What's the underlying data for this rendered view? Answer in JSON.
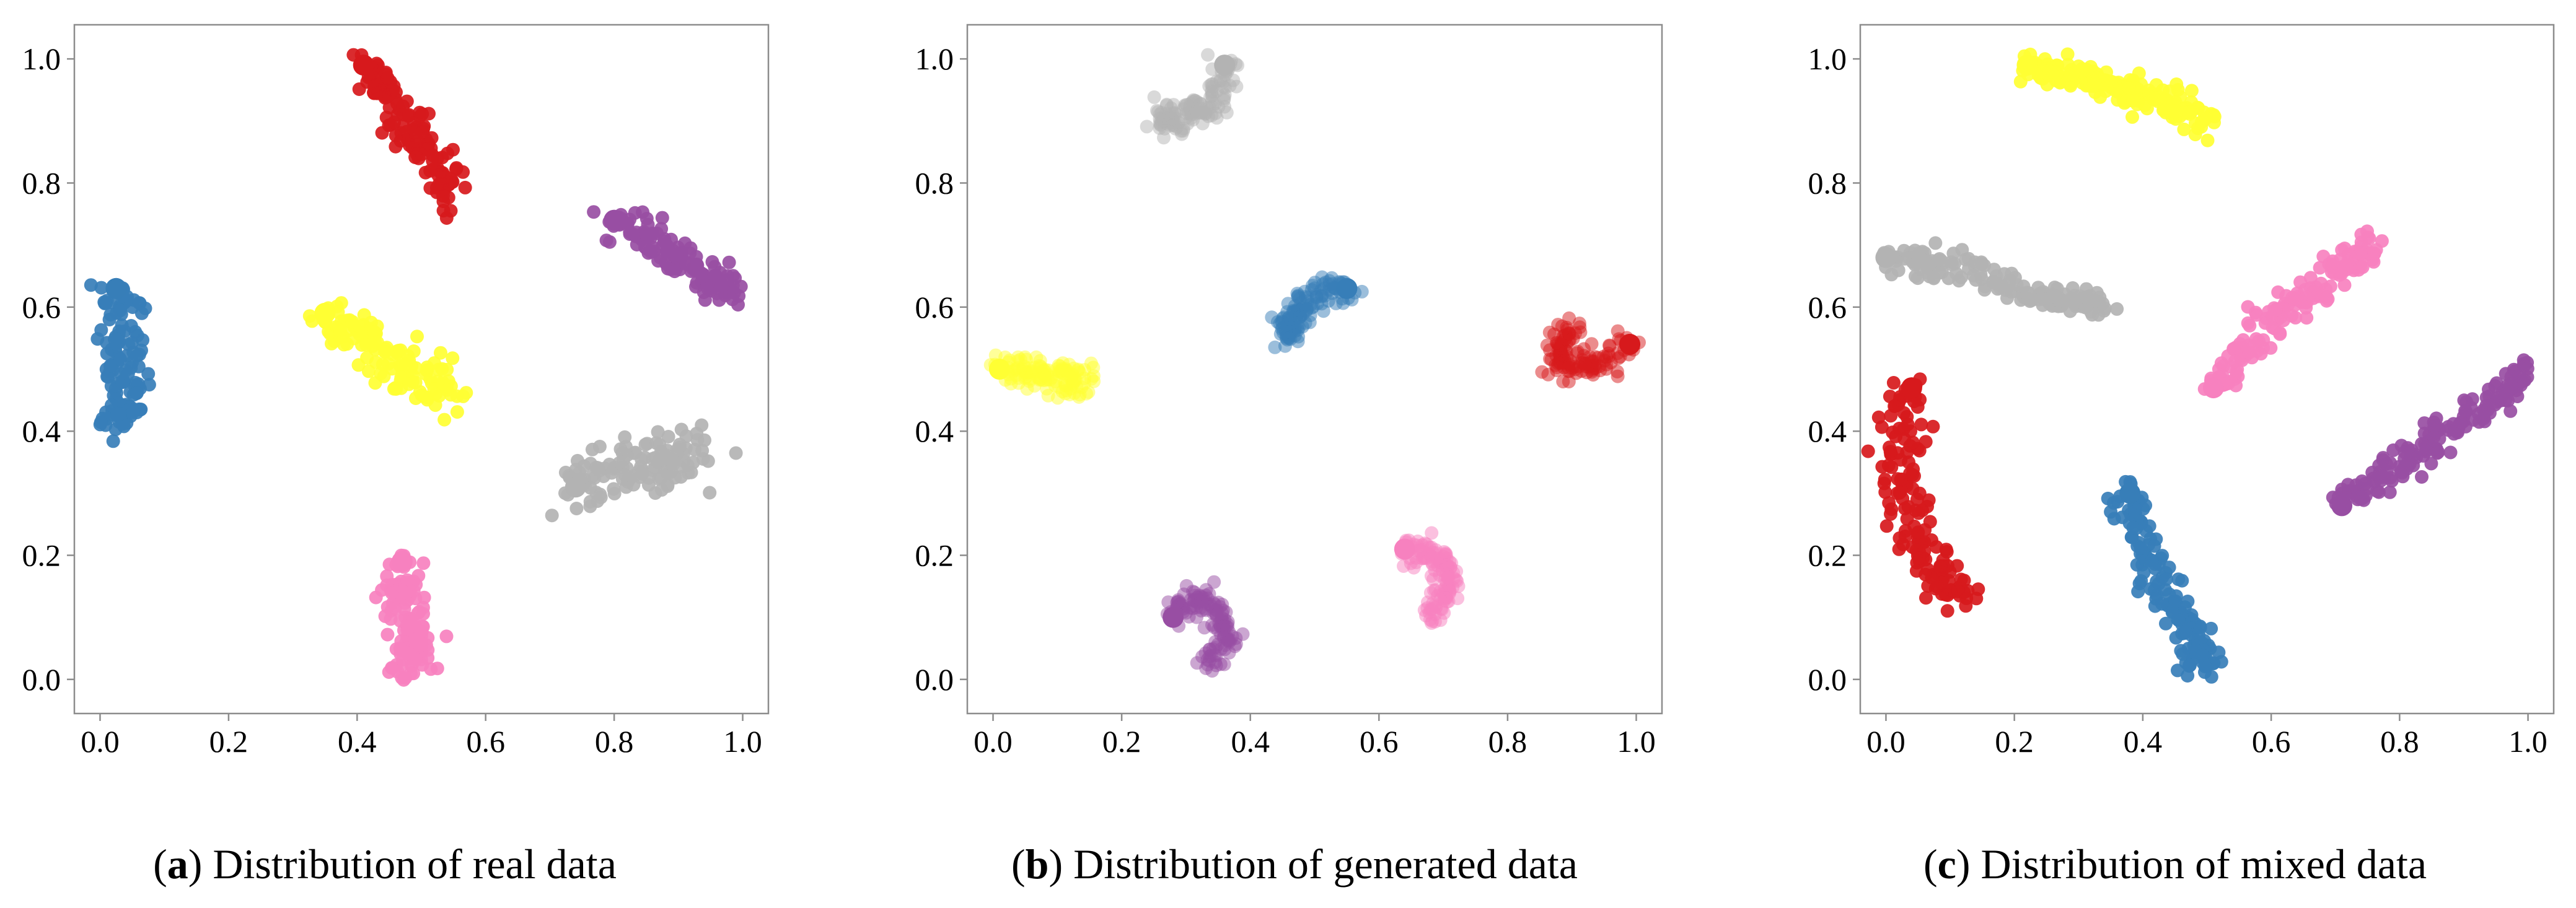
{
  "figure": {
    "captions": [
      {
        "open": "(",
        "letter": "a",
        "close": ")",
        "text": " Distribution of real data"
      },
      {
        "open": "(",
        "letter": "b",
        "close": ")",
        "text": " Distribution of generated data"
      },
      {
        "open": "(",
        "letter": "c",
        "close": ")",
        "text": " Distribution of mixed data"
      }
    ]
  },
  "chart_data": [
    {
      "type": "scatter",
      "title": "Distribution of real data",
      "xlabel": "",
      "ylabel": "",
      "xlim": [
        -0.04,
        1.04
      ],
      "ylim": [
        -0.055,
        1.055
      ],
      "xticks": [
        "0.0",
        "0.2",
        "0.4",
        "0.6",
        "0.8",
        "1.0"
      ],
      "yticks": [
        "0.0",
        "0.2",
        "0.4",
        "0.6",
        "0.8",
        "1.0"
      ],
      "grid": false,
      "clusters": [
        {
          "color": "#d7191c",
          "x": [
            0.41,
            0.44,
            0.47,
            0.5,
            0.53,
            0.55
          ],
          "y": [
            0.99,
            0.95,
            0.9,
            0.86,
            0.81,
            0.78
          ],
          "spread": [
            0.012,
            0.022
          ]
        },
        {
          "color": "#377eb8",
          "x": [
            0.025,
            0.03,
            0.035,
            0.04,
            0.035,
            0.03
          ],
          "y": [
            0.63,
            0.58,
            0.52,
            0.47,
            0.43,
            0.41
          ],
          "spread": [
            0.018,
            0.012
          ]
        },
        {
          "color": "#984ea3",
          "x": [
            0.8,
            0.84,
            0.88,
            0.92,
            0.96,
            0.99
          ],
          "y": [
            0.74,
            0.72,
            0.69,
            0.67,
            0.64,
            0.62
          ],
          "spread": [
            0.015,
            0.015
          ]
        },
        {
          "color": "#ffff33",
          "x": [
            0.35,
            0.39,
            0.43,
            0.47,
            0.51,
            0.55
          ],
          "y": [
            0.59,
            0.56,
            0.53,
            0.5,
            0.48,
            0.46
          ],
          "spread": [
            0.015,
            0.018
          ]
        },
        {
          "color": "#b3b3b3",
          "x": [
            0.74,
            0.78,
            0.82,
            0.86,
            0.9,
            0.94
          ],
          "y": [
            0.31,
            0.33,
            0.34,
            0.35,
            0.36,
            0.37
          ],
          "spread": [
            0.02,
            0.022
          ]
        },
        {
          "color": "#f781bf",
          "x": [
            0.47,
            0.47,
            0.48,
            0.49,
            0.48,
            0.48
          ],
          "y": [
            0.19,
            0.15,
            0.11,
            0.07,
            0.04,
            0.01
          ],
          "spread": [
            0.018,
            0.012
          ]
        }
      ]
    },
    {
      "type": "scatter",
      "title": "Distribution of generated data",
      "xlabel": "",
      "ylabel": "",
      "xlim": [
        -0.04,
        1.04
      ],
      "ylim": [
        -0.055,
        1.055
      ],
      "xticks": [
        "0.0",
        "0.2",
        "0.4",
        "0.6",
        "0.8",
        "1.0"
      ],
      "yticks": [
        "0.0",
        "0.2",
        "0.4",
        "0.6",
        "0.8",
        "1.0"
      ],
      "grid": false,
      "clusters": [
        {
          "color": "#b3b3b3",
          "x": [
            0.36,
            0.35,
            0.33,
            0.3,
            0.27,
            0.26
          ],
          "y": [
            0.99,
            0.95,
            0.92,
            0.91,
            0.9,
            0.91
          ],
          "spread": [
            0.012,
            0.012
          ]
        },
        {
          "color": "#377eb8",
          "x": [
            0.55,
            0.52,
            0.49,
            0.47,
            0.46,
            0.46
          ],
          "y": [
            0.63,
            0.63,
            0.61,
            0.59,
            0.57,
            0.55
          ],
          "spread": [
            0.012,
            0.012
          ]
        },
        {
          "color": "#ffff33",
          "x": [
            0.01,
            0.04,
            0.07,
            0.1,
            0.12,
            0.15
          ],
          "y": [
            0.5,
            0.5,
            0.49,
            0.49,
            0.48,
            0.48
          ],
          "spread": [
            0.012,
            0.012
          ]
        },
        {
          "color": "#d7191c",
          "x": [
            0.99,
            0.95,
            0.91,
            0.88,
            0.88,
            0.9
          ],
          "y": [
            0.54,
            0.51,
            0.5,
            0.51,
            0.54,
            0.57
          ],
          "spread": [
            0.012,
            0.012
          ]
        },
        {
          "color": "#f781bf",
          "x": [
            0.64,
            0.67,
            0.7,
            0.71,
            0.7,
            0.67
          ],
          "y": [
            0.21,
            0.21,
            0.19,
            0.16,
            0.13,
            0.1
          ],
          "spread": [
            0.01,
            0.01
          ]
        },
        {
          "color": "#984ea3",
          "x": [
            0.28,
            0.31,
            0.34,
            0.36,
            0.36,
            0.33
          ],
          "y": [
            0.1,
            0.13,
            0.12,
            0.09,
            0.05,
            0.02
          ],
          "spread": [
            0.01,
            0.01
          ]
        }
      ]
    },
    {
      "type": "scatter",
      "title": "Distribution of mixed data",
      "xlabel": "",
      "ylabel": "",
      "xlim": [
        -0.04,
        1.04
      ],
      "ylim": [
        -0.055,
        1.055
      ],
      "xticks": [
        "0.0",
        "0.2",
        "0.4",
        "0.6",
        "0.8",
        "1.0"
      ],
      "yticks": [
        "0.0",
        "0.2",
        "0.4",
        "0.6",
        "0.8",
        "1.0"
      ],
      "grid": false,
      "clusters": [
        {
          "color": "#ffff33",
          "x": [
            0.22,
            0.26,
            0.3,
            0.34,
            0.38,
            0.42,
            0.46,
            0.51
          ],
          "y": [
            0.99,
            0.98,
            0.97,
            0.96,
            0.95,
            0.94,
            0.92,
            0.89
          ],
          "spread": [
            0.015,
            0.012
          ]
        },
        {
          "color": "#b3b3b3",
          "x": [
            0.0,
            0.06,
            0.12,
            0.18,
            0.24,
            0.3,
            0.35
          ],
          "y": [
            0.68,
            0.67,
            0.66,
            0.64,
            0.62,
            0.61,
            0.6
          ],
          "spread": [
            0.015,
            0.012
          ]
        },
        {
          "color": "#f781bf",
          "x": [
            0.51,
            0.55,
            0.59,
            0.64,
            0.69,
            0.73,
            0.76
          ],
          "y": [
            0.47,
            0.52,
            0.57,
            0.61,
            0.65,
            0.68,
            0.71
          ],
          "spread": [
            0.012,
            0.015
          ]
        },
        {
          "color": "#d7191c",
          "x": [
            0.04,
            0.02,
            0.02,
            0.04,
            0.06,
            0.09,
            0.12
          ],
          "y": [
            0.47,
            0.4,
            0.33,
            0.26,
            0.2,
            0.15,
            0.13
          ],
          "spread": [
            0.02,
            0.012
          ]
        },
        {
          "color": "#377eb8",
          "x": [
            0.38,
            0.39,
            0.41,
            0.44,
            0.47,
            0.49,
            0.5
          ],
          "y": [
            0.3,
            0.25,
            0.19,
            0.13,
            0.08,
            0.04,
            0.02
          ],
          "spread": [
            0.015,
            0.012
          ]
        },
        {
          "color": "#984ea3",
          "x": [
            0.71,
            0.76,
            0.81,
            0.86,
            0.91,
            0.96,
            0.99
          ],
          "y": [
            0.28,
            0.32,
            0.35,
            0.39,
            0.42,
            0.46,
            0.5
          ],
          "spread": [
            0.012,
            0.015
          ]
        }
      ]
    }
  ]
}
